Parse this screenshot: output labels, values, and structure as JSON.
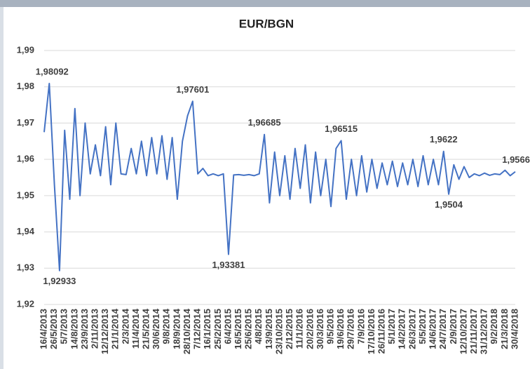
{
  "chart_data": {
    "type": "line",
    "title": "EUR/BGN",
    "categories": [
      "16/4/2013",
      null,
      "26/5/2013",
      null,
      "5/7/2013",
      null,
      "14/8/2013",
      null,
      "23/9/2013",
      null,
      "2/11/2013",
      null,
      "12/12/2013",
      null,
      "21/1/2014",
      null,
      "2/3/2014",
      null,
      "11/4/2014",
      null,
      "21/5/2014",
      null,
      "30/6/2014",
      null,
      "9/8/2014",
      null,
      "18/9/2014",
      null,
      "28/10/2014",
      null,
      "7/12/2014",
      null,
      "16/1/2015",
      null,
      "25/2/2015",
      null,
      "6/4/2015",
      null,
      "16/5/2015",
      null,
      "25/6/2015",
      null,
      "4/8/2015",
      null,
      "13/9/2015",
      null,
      "23/10/2015",
      null,
      "2/12/2015",
      null,
      "11/1/2016",
      null,
      "20/2/2016",
      null,
      "30/3/2016",
      null,
      "9/5/2016",
      null,
      "19/6/2016",
      null,
      "29/7/2016",
      null,
      "7/9/2016",
      null,
      "17/10/2016",
      null,
      "26/11/2016",
      null,
      "5/1/2017",
      null,
      "14/2/2017",
      null,
      "26/3/2017",
      null,
      "5/5/2017",
      null,
      "14/6/2017",
      null,
      "24/7/2017",
      null,
      "2/9/2017",
      null,
      "12/10/2017",
      null,
      "21/11/2017",
      null,
      "31/12/2017",
      null,
      "9/2/2018",
      null,
      "21/3/2018",
      null,
      "30/4/2018"
    ],
    "values": [
      1.9675,
      1.98092,
      1.953,
      1.92933,
      1.968,
      1.949,
      1.974,
      1.95,
      1.97,
      1.956,
      1.964,
      1.9555,
      1.969,
      1.953,
      1.97,
      1.956,
      1.9558,
      1.963,
      1.956,
      1.965,
      1.9555,
      1.966,
      1.956,
      1.9665,
      1.9545,
      1.966,
      1.949,
      1.965,
      1.972,
      1.97601,
      1.956,
      1.9575,
      1.9555,
      1.956,
      1.9555,
      1.956,
      1.93381,
      1.9557,
      1.9558,
      1.9556,
      1.9558,
      1.9555,
      1.956,
      1.96685,
      1.948,
      1.962,
      1.95,
      1.961,
      1.949,
      1.963,
      1.952,
      1.964,
      1.948,
      1.962,
      1.95,
      1.96,
      1.947,
      1.963,
      1.96515,
      1.949,
      1.96,
      1.95,
      1.961,
      1.951,
      1.96,
      1.952,
      1.959,
      1.953,
      1.9595,
      1.9525,
      1.959,
      1.953,
      1.96,
      1.9525,
      1.961,
      1.953,
      1.96,
      1.953,
      1.9622,
      1.9504,
      1.9585,
      1.9545,
      1.958,
      1.955,
      1.956,
      1.9555,
      1.9562,
      1.9556,
      1.956,
      1.9558,
      1.957,
      1.9555,
      1.9566
    ],
    "value_labels": [
      null,
      "1,98092",
      null,
      "1,92933",
      null,
      null,
      null,
      null,
      null,
      null,
      null,
      null,
      null,
      null,
      null,
      null,
      null,
      null,
      null,
      null,
      null,
      null,
      null,
      null,
      null,
      null,
      null,
      null,
      null,
      "1,97601",
      null,
      null,
      null,
      null,
      null,
      null,
      "1,93381",
      null,
      null,
      null,
      null,
      null,
      null,
      "1,96685",
      null,
      null,
      null,
      null,
      null,
      null,
      null,
      null,
      null,
      null,
      null,
      null,
      null,
      null,
      "1,96515",
      null,
      null,
      null,
      null,
      null,
      null,
      null,
      null,
      null,
      null,
      null,
      null,
      null,
      null,
      null,
      null,
      null,
      null,
      null,
      "1,9622",
      "1,9504",
      null,
      null,
      null,
      null,
      null,
      null,
      null,
      null,
      null,
      null,
      null,
      null,
      "1,9566"
    ],
    "color": "#4472c4",
    "ylim": [
      1.92,
      1.99
    ],
    "yticks": [
      {
        "value": 1.92,
        "label": "1,92"
      },
      {
        "value": 1.93,
        "label": "1,93"
      },
      {
        "value": 1.94,
        "label": "1,94"
      },
      {
        "value": 1.95,
        "label": "1,95"
      },
      {
        "value": 1.96,
        "label": "1,96"
      },
      {
        "value": 1.97,
        "label": "1,97"
      },
      {
        "value": 1.98,
        "label": "1,98"
      },
      {
        "value": 1.99,
        "label": "1,99"
      }
    ],
    "grid": true
  }
}
